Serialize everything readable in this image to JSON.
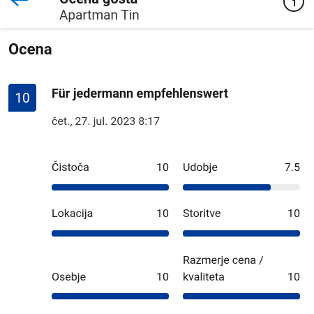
{
  "header": {
    "title": "Ocena gosta",
    "subtitle": "Apartman Tin"
  },
  "section_title": "Ocena",
  "review": {
    "score": 10,
    "title": "Für jedermann empfehlenswert",
    "date": "čet., 27. jul. 2023 8:17"
  },
  "ratings": [
    {
      "label": "Čistoča",
      "value": 10
    },
    {
      "label": "Udobje",
      "value": 7.5
    },
    {
      "label": "Lokacija",
      "value": 10
    },
    {
      "label": "Storitve",
      "value": 10
    },
    {
      "label": "Osebje",
      "value": 10
    },
    {
      "label": "Razmerje cena / kvaliteta",
      "value": 10
    }
  ]
}
